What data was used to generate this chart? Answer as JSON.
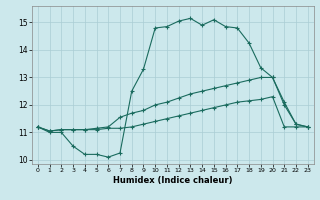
{
  "xlabel": "Humidex (Indice chaleur)",
  "bg_color": "#cce8ec",
  "grid_color": "#aacdd4",
  "line_color": "#1a6b5e",
  "xlim_min": -0.5,
  "xlim_max": 23.5,
  "ylim_min": 9.85,
  "ylim_max": 15.6,
  "yticks": [
    10,
    11,
    12,
    13,
    14,
    15
  ],
  "xticks": [
    0,
    1,
    2,
    3,
    4,
    5,
    6,
    7,
    8,
    9,
    10,
    11,
    12,
    13,
    14,
    15,
    16,
    17,
    18,
    19,
    20,
    21,
    22,
    23
  ],
  "line1_x": [
    0,
    1,
    2,
    3,
    4,
    5,
    6,
    7,
    8,
    9,
    10,
    11,
    12,
    13,
    14,
    15,
    16,
    17,
    18,
    19,
    20,
    21,
    22,
    23
  ],
  "line1_y": [
    11.2,
    11.0,
    11.0,
    10.5,
    10.2,
    10.2,
    10.1,
    10.25,
    12.5,
    13.3,
    14.8,
    14.85,
    15.05,
    15.15,
    14.9,
    15.1,
    14.85,
    14.8,
    14.25,
    13.35,
    13.0,
    12.1,
    11.3,
    11.2
  ],
  "line2_x": [
    0,
    1,
    2,
    3,
    4,
    5,
    6,
    7,
    8,
    9,
    10,
    11,
    12,
    13,
    14,
    15,
    16,
    17,
    18,
    19,
    20,
    21,
    22,
    23
  ],
  "line2_y": [
    11.2,
    11.05,
    11.1,
    11.1,
    11.1,
    11.15,
    11.2,
    11.55,
    11.7,
    11.8,
    12.0,
    12.1,
    12.25,
    12.4,
    12.5,
    12.6,
    12.7,
    12.8,
    12.9,
    13.0,
    13.0,
    12.0,
    11.3,
    11.2
  ],
  "line3_x": [
    0,
    1,
    2,
    3,
    4,
    5,
    6,
    7,
    8,
    9,
    10,
    11,
    12,
    13,
    14,
    15,
    16,
    17,
    18,
    19,
    20,
    21,
    22,
    23
  ],
  "line3_y": [
    11.2,
    11.05,
    11.1,
    11.1,
    11.1,
    11.1,
    11.15,
    11.15,
    11.2,
    11.3,
    11.4,
    11.5,
    11.6,
    11.7,
    11.8,
    11.9,
    12.0,
    12.1,
    12.15,
    12.2,
    12.3,
    11.2,
    11.2,
    11.2
  ]
}
